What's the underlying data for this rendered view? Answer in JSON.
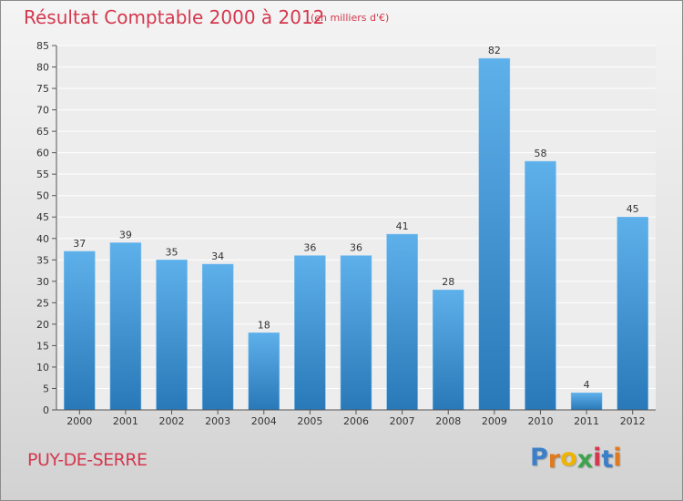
{
  "header": {
    "title": "Résultat Comptable 2000 à 2012",
    "subtitle": "(en milliers d'€)"
  },
  "footer": {
    "commune": "PUY-DE-SERRE",
    "logo_letters": [
      "P",
      "r",
      "o",
      "x",
      "i",
      "t",
      "i"
    ]
  },
  "colors": {
    "bar_top": "#5eb0ea",
    "bar_bottom": "#2978b8",
    "accent": "#d4384e",
    "logo": [
      "#3a7fc8",
      "#e07a1f",
      "#f0b400",
      "#3fa34d",
      "#d4384e",
      "#3a7fc8",
      "#e07a1f"
    ]
  },
  "chart_data": {
    "type": "bar",
    "title": "Résultat Comptable 2000 à 2012",
    "subtitle": "(en milliers d'€)",
    "xlabel": "",
    "ylabel": "",
    "categories": [
      "2000",
      "2001",
      "2002",
      "2003",
      "2004",
      "2005",
      "2006",
      "2007",
      "2008",
      "2009",
      "2010",
      "2011",
      "2012"
    ],
    "values": [
      37,
      39,
      35,
      34,
      18,
      36,
      36,
      41,
      28,
      82,
      58,
      4,
      45
    ],
    "ylim": [
      0,
      85
    ],
    "yticks": [
      0,
      5,
      10,
      15,
      20,
      25,
      30,
      35,
      40,
      45,
      50,
      55,
      60,
      65,
      70,
      75,
      80,
      85
    ],
    "grid": true,
    "legend": "none"
  }
}
